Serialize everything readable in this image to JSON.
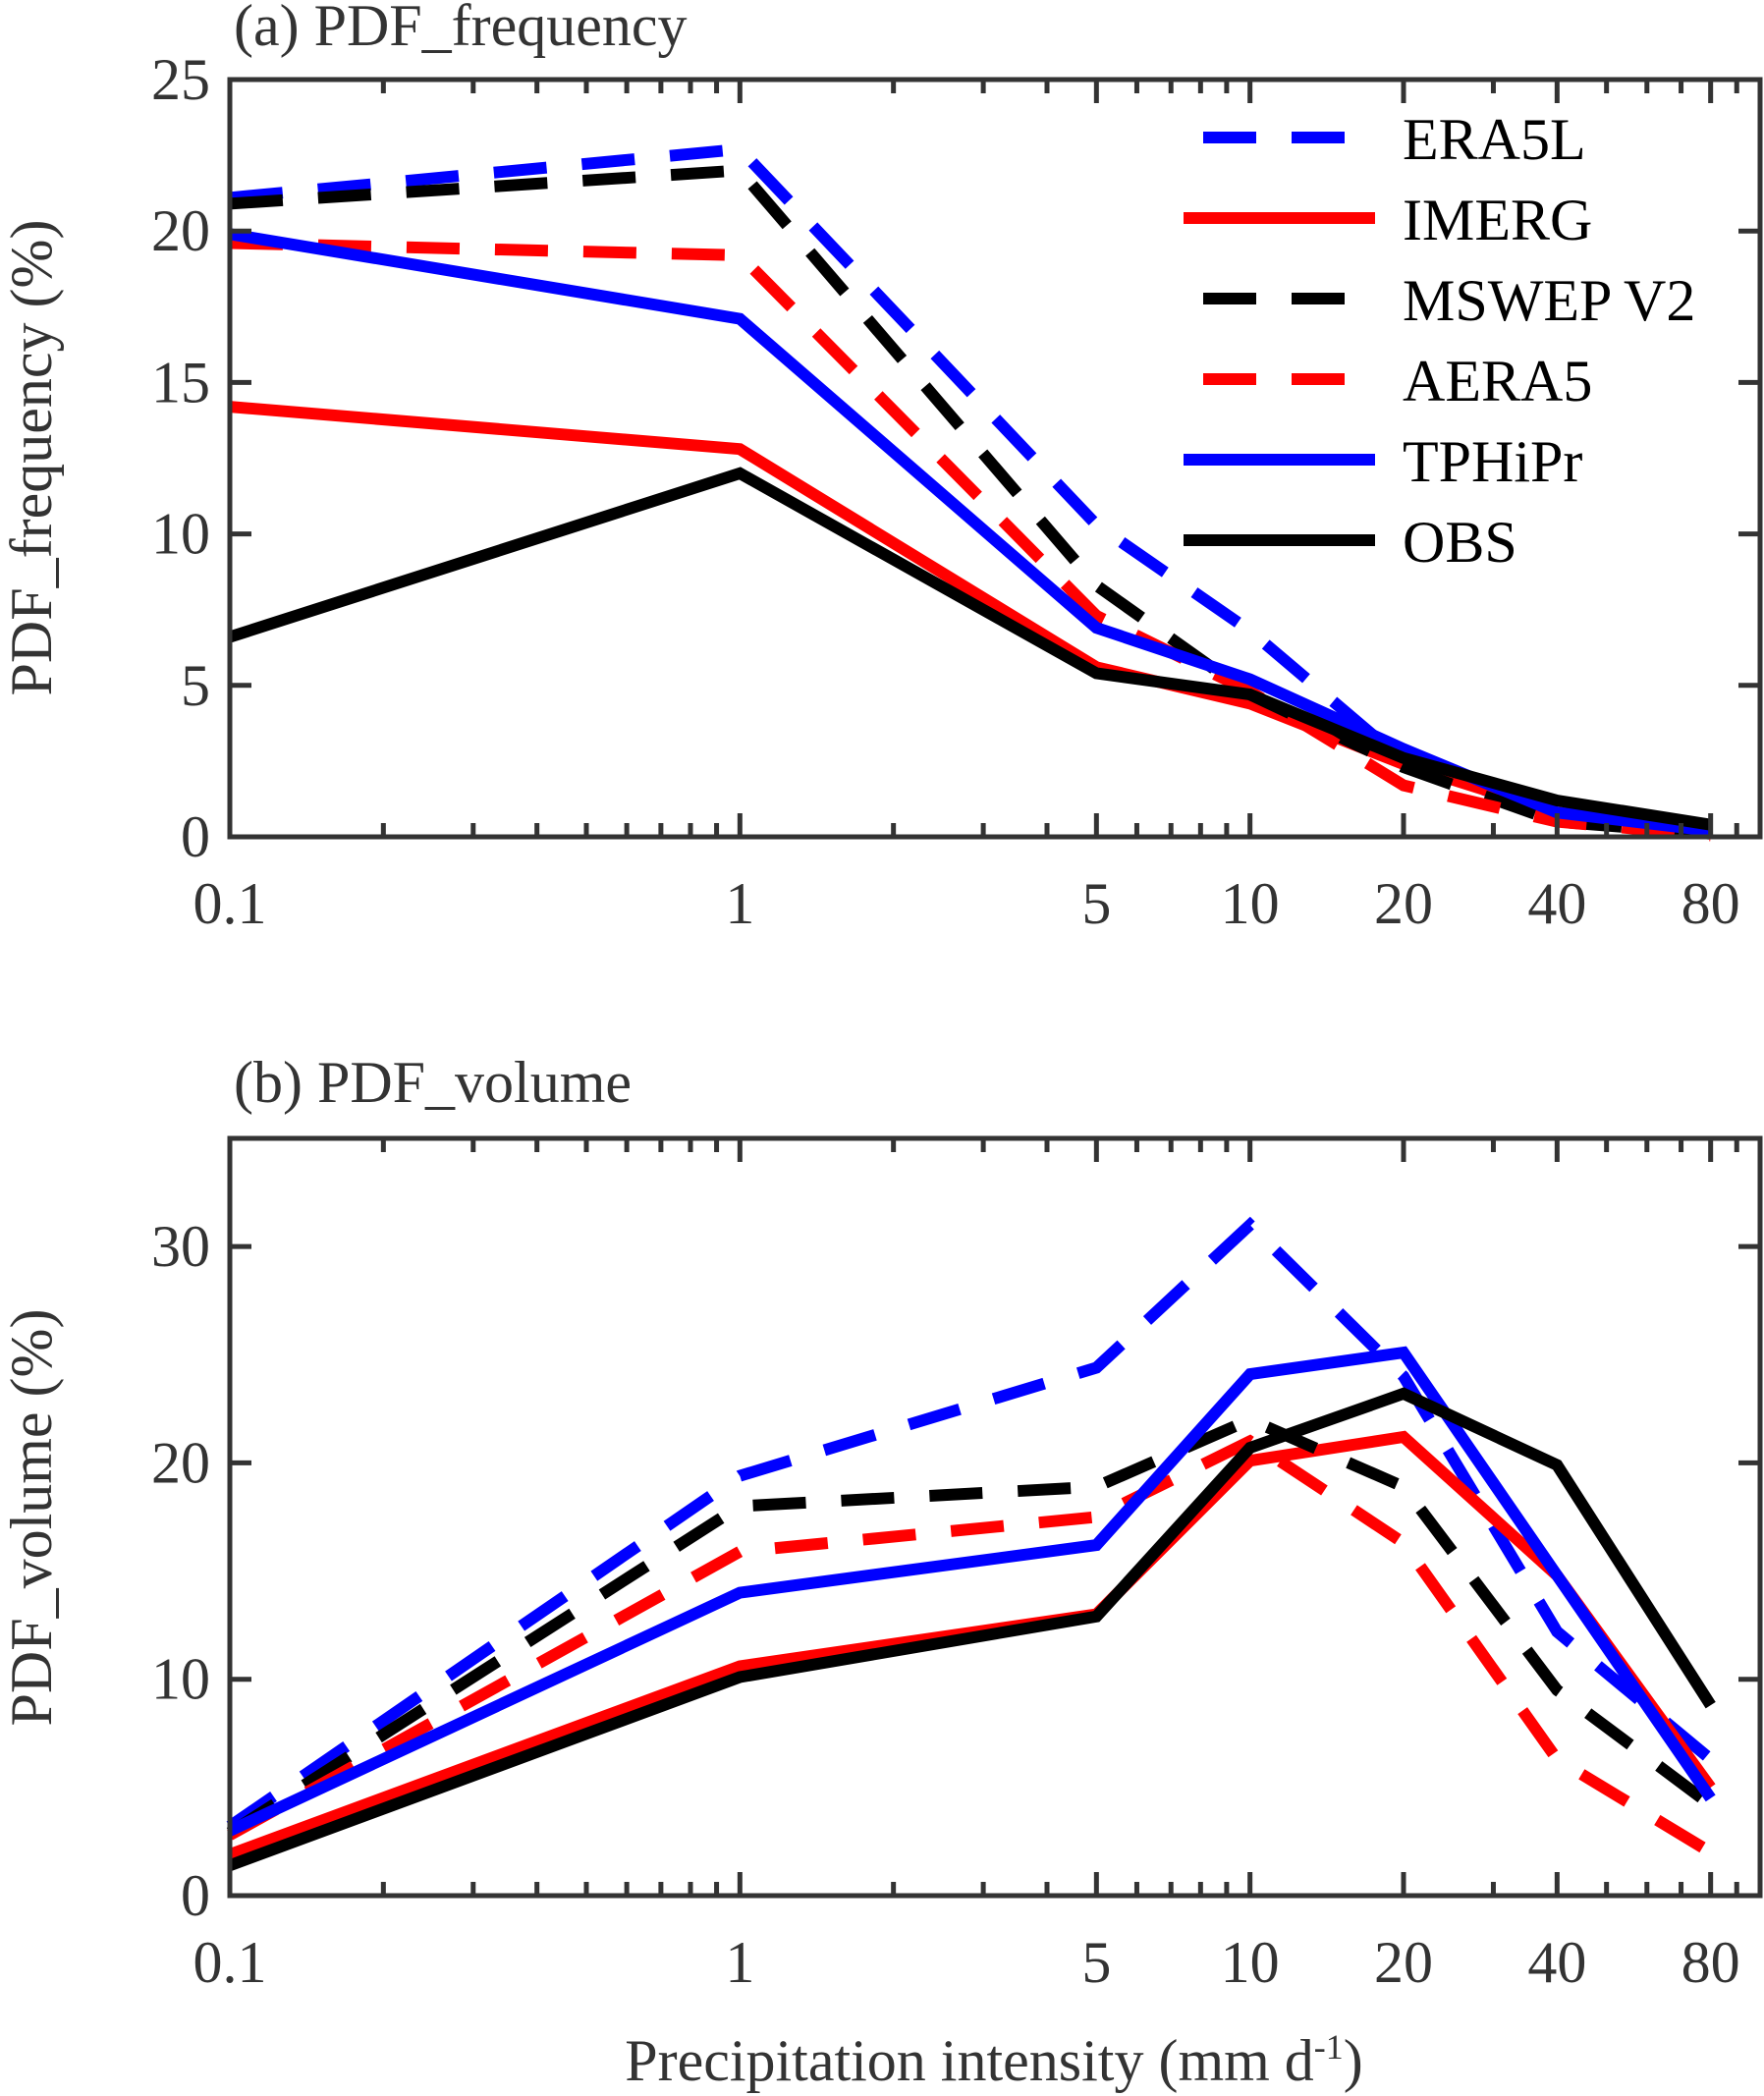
{
  "figure": {
    "xlabel_main": "Precipitation intensity (mm d",
    "xlabel_sup": "-1",
    "xlabel_end": ")"
  },
  "chart_data": [
    {
      "type": "line",
      "title": "(a) PDF_frequency",
      "xlabel": "",
      "ylabel": "PDF_frequency (%)",
      "xscale": "log",
      "xlim": [
        0.1,
        100
      ],
      "ylim": [
        0,
        25
      ],
      "x": [
        0.1,
        1,
        5,
        10,
        20,
        40,
        80
      ],
      "xticks": [
        0.1,
        1,
        5,
        10,
        20,
        40,
        80
      ],
      "xtick_labels": [
        "0.1",
        "1",
        "5",
        "10",
        "20",
        "40",
        "80"
      ],
      "yticks": [
        0,
        5,
        10,
        15,
        20,
        25
      ],
      "ytick_labels": [
        "0",
        "5",
        "10",
        "15",
        "20",
        "25"
      ],
      "grid": false,
      "legend": {
        "position": "top-right"
      },
      "series": [
        {
          "name": "ERA5L",
          "color": "#0000ff",
          "style": "dashed",
          "values": [
            21.1,
            22.7,
            10.3,
            6.8,
            2.5,
            0.7,
            0.2
          ]
        },
        {
          "name": "IMERG",
          "color": "#ff0000",
          "style": "solid",
          "values": [
            14.2,
            12.8,
            5.6,
            4.4,
            2.4,
            0.8,
            0.2
          ]
        },
        {
          "name": "MSWEP V2",
          "color": "#000000",
          "style": "dashed",
          "values": [
            20.9,
            22.0,
            8.3,
            4.7,
            2.3,
            0.5,
            0.1
          ]
        },
        {
          "name": "AERA5",
          "color": "#ff0000",
          "style": "dashed",
          "values": [
            19.6,
            19.2,
            7.3,
            4.8,
            1.7,
            0.5,
            0.05
          ]
        },
        {
          "name": "TPHiPr",
          "color": "#0000ff",
          "style": "solid",
          "values": [
            19.9,
            17.1,
            6.9,
            5.2,
            2.9,
            0.8,
            0.2
          ]
        },
        {
          "name": "OBS",
          "color": "#000000",
          "style": "solid",
          "values": [
            6.6,
            12.0,
            5.4,
            4.7,
            2.6,
            1.2,
            0.4
          ]
        }
      ]
    },
    {
      "type": "line",
      "title": "(b) PDF_volume",
      "xlabel": "Precipitation intensity (mm d-1)",
      "ylabel": "PDF_volume (%)",
      "xscale": "log",
      "xlim": [
        0.1,
        100
      ],
      "ylim": [
        0,
        35
      ],
      "x": [
        0.1,
        1,
        5,
        10,
        20,
        40,
        80
      ],
      "xticks": [
        0.1,
        1,
        5,
        10,
        20,
        40,
        80
      ],
      "xtick_labels": [
        "0.1",
        "1",
        "5",
        "10",
        "20",
        "40",
        "80"
      ],
      "yticks": [
        0,
        10,
        20,
        30
      ],
      "ytick_labels": [
        "0",
        "10",
        "20",
        "30"
      ],
      "grid": false,
      "series": [
        {
          "name": "ERA5L",
          "color": "#0000ff",
          "style": "dashed",
          "values": [
            3.2,
            19.4,
            24.4,
            31.0,
            24.0,
            12.2,
            6.3
          ]
        },
        {
          "name": "IMERG",
          "color": "#ff0000",
          "style": "solid",
          "values": [
            1.9,
            10.6,
            13.0,
            20.1,
            21.2,
            14.8,
            5.0
          ]
        },
        {
          "name": "MSWEP V2",
          "color": "#000000",
          "style": "dashed",
          "values": [
            2.9,
            18.0,
            18.9,
            22.0,
            18.9,
            9.5,
            4.2
          ]
        },
        {
          "name": "AERA5",
          "color": "#ff0000",
          "style": "dashed",
          "values": [
            2.8,
            15.9,
            17.5,
            21.0,
            16.3,
            6.3,
            2.0
          ]
        },
        {
          "name": "TPHiPr",
          "color": "#0000ff",
          "style": "solid",
          "values": [
            3.0,
            14.0,
            16.2,
            24.1,
            25.1,
            14.8,
            4.5
          ]
        },
        {
          "name": "OBS",
          "color": "#000000",
          "style": "solid",
          "values": [
            1.4,
            10.1,
            12.9,
            20.7,
            23.2,
            19.9,
            8.8
          ]
        }
      ]
    }
  ]
}
